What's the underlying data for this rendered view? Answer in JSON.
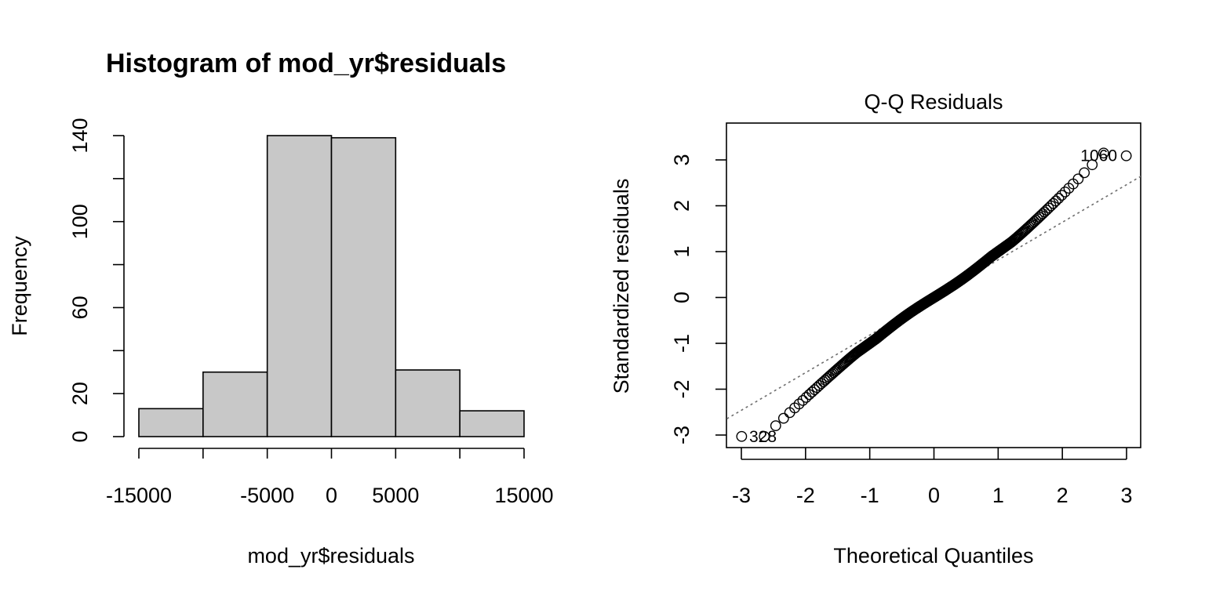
{
  "chart_data": [
    {
      "type": "bar",
      "title": "Histogram of mod_yr$residuals",
      "xlabel": "mod_yr$residuals",
      "ylabel": "Frequency",
      "bin_edges": [
        -15000,
        -10000,
        -5000,
        0,
        5000,
        10000,
        15000
      ],
      "values": [
        13,
        30,
        140,
        139,
        31,
        12
      ],
      "xlim": [
        -15000,
        15000
      ],
      "ylim": [
        0,
        140
      ],
      "x_ticks": [
        -15000,
        -10000,
        -5000,
        0,
        5000,
        10000,
        15000
      ],
      "x_tick_labels": [
        "-15000",
        "",
        "-5000",
        "0",
        "5000",
        "",
        "15000"
      ],
      "y_ticks": [
        0,
        20,
        40,
        60,
        80,
        100,
        120,
        140
      ],
      "y_tick_labels": [
        "0",
        "20",
        "",
        "60",
        "",
        "100",
        "",
        "140"
      ],
      "grid": false
    },
    {
      "type": "scatter",
      "title": "Q-Q Residuals",
      "xlabel": "Theoretical Quantiles",
      "ylabel": "Standardized residuals",
      "xlim": [
        -3.2,
        3.2
      ],
      "ylim": [
        -3.3,
        3.75
      ],
      "x_ticks": [
        -3,
        -2,
        -1,
        0,
        1,
        2,
        3
      ],
      "x_tick_labels": [
        "-3",
        "-2",
        "-1",
        "0",
        "1",
        "2",
        "3"
      ],
      "y_ticks": [
        -3,
        -2,
        -1,
        0,
        1,
        2,
        3
      ],
      "y_tick_labels": [
        "-3",
        "-2",
        "-1",
        "0",
        "1",
        "2",
        "3"
      ],
      "reference_line": {
        "slope": 0.82,
        "intercept": 0.0,
        "style": "dotted",
        "color": "#6e6e6e"
      },
      "n_points": 365,
      "labeled_points": [
        {
          "label": "1060",
          "x": 3.0,
          "y": 3.09
        },
        {
          "label": "328",
          "x": -3.0,
          "y": -3.03
        }
      ],
      "grid": false
    }
  ]
}
